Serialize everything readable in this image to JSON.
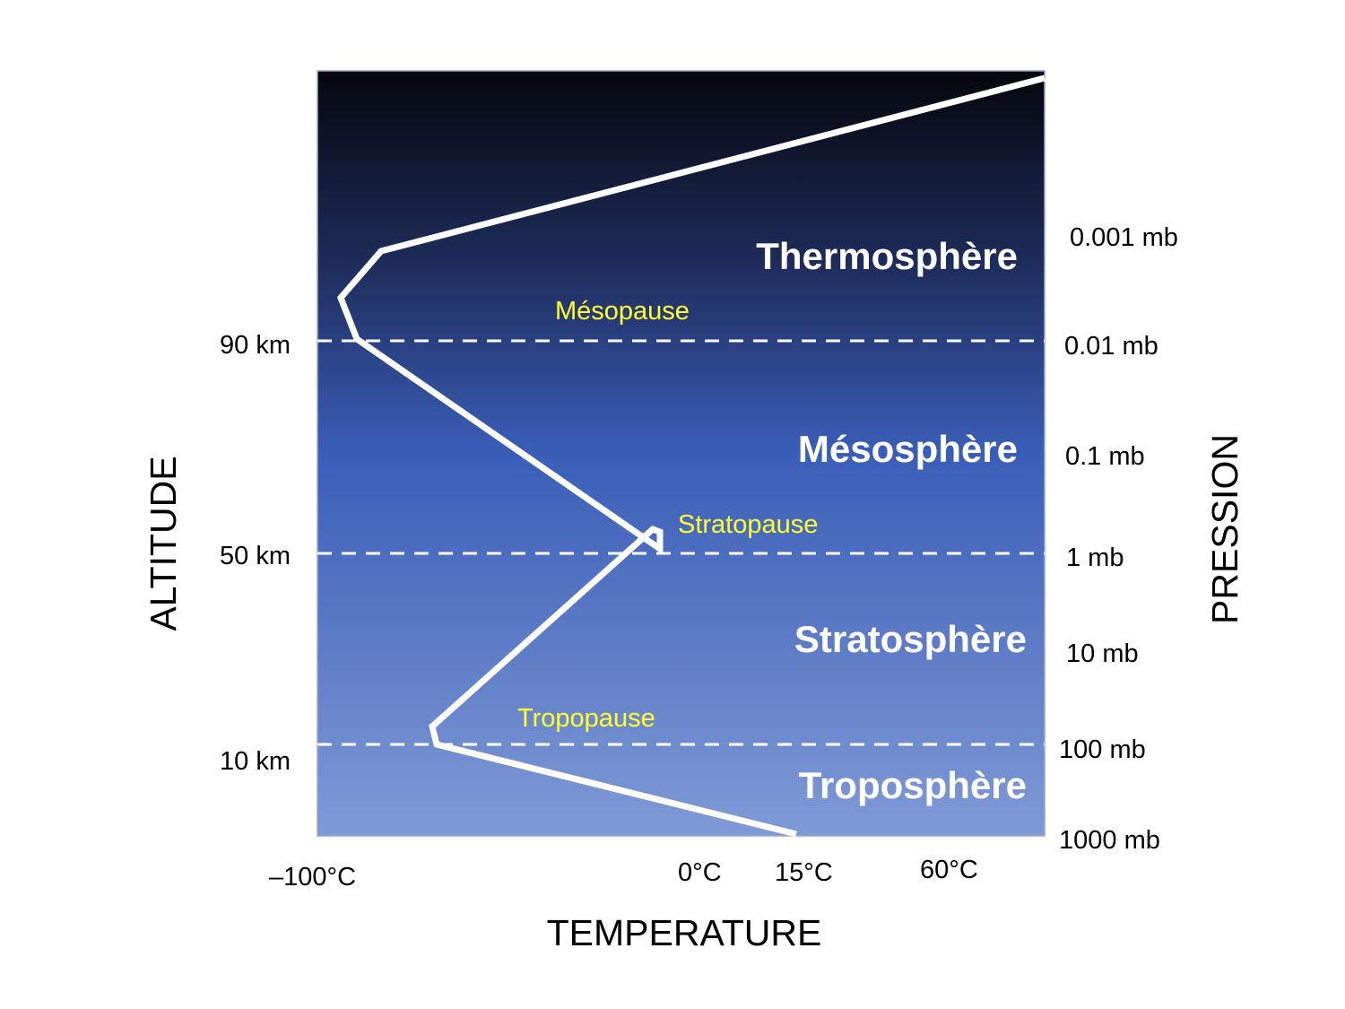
{
  "axes": {
    "x_label": "TEMPERATURE",
    "y_left_label": "ALTITUDE",
    "y_right_label": "PRESSION"
  },
  "temperature_ticks": [
    "–100°C",
    "0°C",
    "15°C",
    "60°C"
  ],
  "altitude_ticks": [
    "90 km",
    "50 km",
    "10 km"
  ],
  "pressure_ticks": [
    "0.001 mb",
    "0.01 mb",
    "0.1 mb",
    "1 mb",
    "10 mb",
    "100 mb",
    "1000 mb"
  ],
  "layers": [
    "Thermosphère",
    "Mésosphère",
    "Stratosphère",
    "Troposphère"
  ],
  "pauses": [
    "Mésopause",
    "Stratopause",
    "Tropopause"
  ],
  "colors": {
    "background_top": "#05070d",
    "background_mid": "#3a5eb8",
    "background_bottom": "#7f9ad6",
    "profile_line": "#ffffff",
    "pause_text": "#ffff33",
    "layer_text": "#ffffff"
  }
}
